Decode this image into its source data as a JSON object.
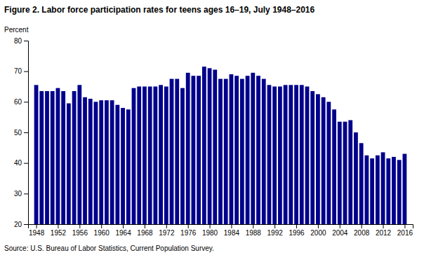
{
  "chart_data": {
    "type": "bar",
    "title": "Figure 2. Labor force participation rates for teens ages 16–19, July 1948–2016",
    "ylabel": "Percent",
    "annotations": [
      "Source: U.S. Bureau of Labor Statistics, Current Population Survey."
    ],
    "color": "#00008B",
    "x": [
      1948,
      1949,
      1950,
      1951,
      1952,
      1953,
      1954,
      1955,
      1956,
      1957,
      1958,
      1959,
      1960,
      1961,
      1962,
      1963,
      1964,
      1965,
      1966,
      1967,
      1968,
      1969,
      1970,
      1971,
      1972,
      1973,
      1974,
      1975,
      1976,
      1977,
      1978,
      1979,
      1980,
      1981,
      1982,
      1983,
      1984,
      1985,
      1986,
      1987,
      1988,
      1989,
      1990,
      1991,
      1992,
      1993,
      1994,
      1995,
      1996,
      1997,
      1998,
      1999,
      2000,
      2001,
      2002,
      2003,
      2004,
      2005,
      2006,
      2007,
      2008,
      2009,
      2010,
      2011,
      2012,
      2013,
      2014,
      2015,
      2016
    ],
    "values": [
      65.5,
      63.5,
      63.5,
      63.5,
      64.5,
      63.5,
      59.5,
      63.5,
      65.5,
      61.5,
      61.0,
      60.0,
      60.5,
      60.5,
      60.5,
      59.0,
      58.0,
      57.5,
      64.5,
      65.0,
      65.0,
      65.0,
      65.0,
      65.5,
      65.0,
      67.5,
      67.5,
      64.5,
      69.5,
      68.5,
      68.5,
      71.5,
      71.0,
      70.5,
      67.5,
      67.5,
      69.0,
      68.5,
      67.5,
      68.5,
      69.5,
      68.5,
      67.5,
      65.5,
      65.0,
      65.0,
      65.5,
      65.5,
      65.5,
      65.5,
      65.0,
      63.5,
      62.5,
      61.5,
      60.0,
      57.5,
      53.5,
      53.5,
      54.0,
      50.0,
      46.5,
      42.5,
      41.5,
      42.5,
      43.5,
      41.5,
      42.0,
      41.0,
      43.0
    ],
    "xlim": [
      1946.5,
      2017.5
    ],
    "xticks": [
      1948,
      1952,
      1956,
      1960,
      1964,
      1968,
      1972,
      1976,
      1980,
      1984,
      1988,
      1992,
      1996,
      2000,
      2004,
      2008,
      2012,
      2016
    ],
    "ylim": [
      20,
      80
    ],
    "yticks": [
      20,
      30,
      40,
      50,
      60,
      70,
      80
    ],
    "grid": false
  }
}
